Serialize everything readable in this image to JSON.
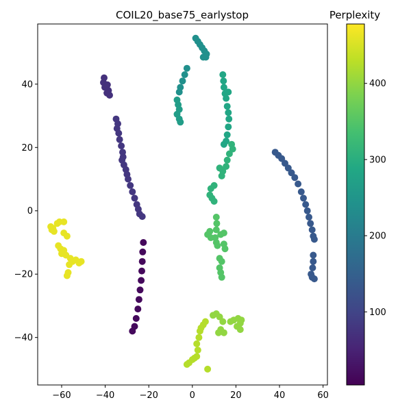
{
  "chart_data": {
    "type": "scatter",
    "title": "COIL20_base75_earlystop",
    "xlabel": "",
    "ylabel": "",
    "xlim": [
      -71,
      62
    ],
    "ylim": [
      -55,
      59
    ],
    "xticks": [
      -60,
      -40,
      -20,
      0,
      20,
      40,
      60
    ],
    "yticks": [
      -40,
      -20,
      0,
      20,
      40
    ],
    "grid": false,
    "colorbar": {
      "label": "Perplexity",
      "colormap": "viridis",
      "range": [
        4,
        478
      ],
      "ticks": [
        100,
        200,
        300,
        400
      ]
    },
    "segments": [
      {
        "value": 15,
        "points": [
          [
            -22.5,
            -10
          ],
          [
            -22.8,
            -13
          ],
          [
            -23,
            -16
          ],
          [
            -23.2,
            -19
          ],
          [
            -23.5,
            -22
          ],
          [
            -24,
            -25
          ],
          [
            -24.5,
            -28
          ],
          [
            -25,
            -31
          ],
          [
            -25.8,
            -34
          ],
          [
            -26.5,
            -36.5
          ],
          [
            -27.5,
            -38
          ]
        ]
      },
      {
        "value": 70,
        "points": [
          [
            -40.5,
            42
          ],
          [
            -40.8,
            40.5
          ],
          [
            -40.2,
            39
          ],
          [
            -39,
            39.8
          ],
          [
            -38.5,
            38
          ],
          [
            -39.2,
            37.2
          ],
          [
            -38,
            36.5
          ]
        ]
      },
      {
        "value": 80,
        "points": [
          [
            -35,
            29
          ],
          [
            -34.2,
            27.5
          ],
          [
            -34.6,
            26
          ],
          [
            -33.8,
            24.5
          ],
          [
            -33.4,
            22.5
          ],
          [
            -32.6,
            20.5
          ],
          [
            -32,
            18.5
          ],
          [
            -31.8,
            17
          ],
          [
            -32.3,
            16
          ],
          [
            -31.4,
            14.5
          ],
          [
            -30.5,
            13
          ],
          [
            -30,
            11.5
          ],
          [
            -29.5,
            10
          ],
          [
            -28.5,
            8
          ],
          [
            -27.5,
            6
          ],
          [
            -26.5,
            4
          ],
          [
            -25.5,
            2
          ],
          [
            -24.8,
            0.5
          ],
          [
            -24.2,
            -1
          ],
          [
            -23,
            -1.8
          ]
        ]
      },
      {
        "value": 135,
        "points": [
          [
            38,
            18.5
          ],
          [
            39.5,
            17.5
          ],
          [
            41,
            16.5
          ],
          [
            42.5,
            15
          ],
          [
            44,
            13.5
          ],
          [
            45.5,
            12
          ],
          [
            47,
            10.5
          ],
          [
            48.5,
            8.5
          ],
          [
            50,
            6
          ],
          [
            51,
            4
          ],
          [
            52,
            2
          ],
          [
            52.8,
            0
          ],
          [
            53.5,
            -2
          ],
          [
            54.2,
            -4
          ],
          [
            55,
            -6
          ],
          [
            55.5,
            -8
          ],
          [
            56,
            -9
          ],
          [
            55.5,
            -14
          ],
          [
            55.5,
            -16
          ],
          [
            55.2,
            -18
          ],
          [
            54.5,
            -20
          ],
          [
            55,
            -21
          ],
          [
            56,
            -21.5
          ]
        ]
      },
      {
        "value": 240,
        "points": [
          [
            1.5,
            54.5
          ],
          [
            2.5,
            53.5
          ],
          [
            3.5,
            52.5
          ],
          [
            4.5,
            51.5
          ],
          [
            5.5,
            50.5
          ],
          [
            6.5,
            49.5
          ],
          [
            6.2,
            48.5
          ],
          [
            5,
            48.5
          ],
          [
            -2.5,
            45
          ],
          [
            -3.5,
            43
          ],
          [
            -4.5,
            41
          ],
          [
            -5.5,
            39
          ],
          [
            -6,
            37.5
          ]
        ]
      },
      {
        "value": 265,
        "points": [
          [
            -7,
            35
          ],
          [
            -6.5,
            33.5
          ],
          [
            -6,
            32
          ],
          [
            -7,
            30.5
          ],
          [
            -6,
            29
          ],
          [
            -5.5,
            28
          ]
        ]
      },
      {
        "value": 285,
        "points": [
          [
            14,
            43
          ],
          [
            14.3,
            41
          ],
          [
            14.5,
            39
          ],
          [
            15,
            37
          ],
          [
            15.5,
            35.5
          ],
          [
            16.5,
            37.5
          ],
          [
            16,
            33
          ],
          [
            16.5,
            31
          ],
          [
            16.8,
            29
          ],
          [
            16.5,
            26.5
          ],
          [
            16,
            24
          ],
          [
            15.5,
            22
          ],
          [
            14.5,
            21
          ]
        ]
      },
      {
        "value": 310,
        "points": [
          [
            18,
            21
          ],
          [
            18.5,
            19.5
          ],
          [
            17,
            18
          ],
          [
            16,
            16
          ],
          [
            15.5,
            14
          ],
          [
            14,
            12.5
          ],
          [
            12.5,
            13.5
          ],
          [
            13.5,
            11
          ],
          [
            10,
            8
          ],
          [
            8.5,
            7
          ],
          [
            8,
            5
          ],
          [
            9,
            4
          ],
          [
            10,
            3
          ]
        ]
      },
      {
        "value": 350,
        "points": [
          [
            11,
            -2
          ],
          [
            11.2,
            -4
          ],
          [
            11,
            -6
          ],
          [
            8,
            -6.5
          ],
          [
            7,
            -7.5
          ],
          [
            8.5,
            -8.5
          ],
          [
            10.5,
            -8.5
          ],
          [
            13,
            -7.5
          ],
          [
            14.5,
            -7
          ],
          [
            11,
            -10
          ],
          [
            11.5,
            -11
          ],
          [
            14.5,
            -10.5
          ],
          [
            15,
            -12
          ],
          [
            12.5,
            -15
          ],
          [
            13.5,
            -16
          ],
          [
            12.5,
            -18
          ],
          [
            13,
            -19.5
          ],
          [
            13.5,
            -21
          ]
        ]
      },
      {
        "value": 400,
        "points": [
          [
            9.5,
            -33
          ],
          [
            11,
            -32.5
          ],
          [
            12.5,
            -33.5
          ],
          [
            14,
            -35
          ],
          [
            13,
            -37.5
          ],
          [
            12,
            -38.5
          ],
          [
            14.5,
            -38.5
          ],
          [
            17.5,
            -35
          ],
          [
            19,
            -34.5
          ],
          [
            21,
            -34
          ],
          [
            22.5,
            -34.5
          ],
          [
            22,
            -35.5
          ],
          [
            20.5,
            -36.5
          ],
          [
            22,
            -37.5
          ]
        ]
      },
      {
        "value": 425,
        "points": [
          [
            6,
            -35
          ],
          [
            5,
            -36
          ],
          [
            4,
            -37
          ],
          [
            3.5,
            -38
          ],
          [
            3,
            -40
          ],
          [
            2,
            -42
          ],
          [
            2.5,
            -44
          ],
          [
            2,
            -46
          ],
          [
            1,
            -46.5
          ],
          [
            0,
            -47
          ],
          [
            -1.5,
            -48
          ],
          [
            -2.5,
            -48.5
          ],
          [
            7,
            -50
          ]
        ]
      },
      {
        "value": 462,
        "points": [
          [
            -65,
            -5
          ],
          [
            -64,
            -5.5
          ],
          [
            -63.5,
            -6.5
          ],
          [
            -64.5,
            -6
          ],
          [
            -62,
            -4
          ],
          [
            -61,
            -3.5
          ],
          [
            -59,
            -3.5
          ],
          [
            -61.5,
            -11
          ],
          [
            -60.5,
            -12
          ],
          [
            -59,
            -12.5
          ],
          [
            -58,
            -14
          ],
          [
            -56,
            -15
          ],
          [
            -55,
            -16
          ],
          [
            -53.5,
            -15.5
          ],
          [
            -52,
            -16.5
          ],
          [
            -51,
            -16
          ],
          [
            -60,
            -13.5
          ],
          [
            -57.5,
            -8
          ],
          [
            -59,
            -7
          ],
          [
            -56.5,
            -17
          ],
          [
            -57,
            -19.5
          ],
          [
            -57.5,
            -20.5
          ]
        ]
      }
    ]
  }
}
